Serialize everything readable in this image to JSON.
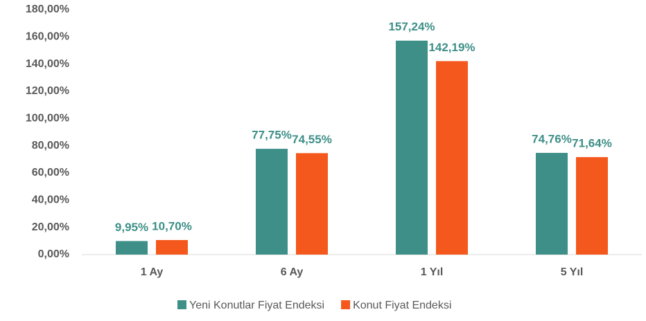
{
  "chart_data": {
    "type": "bar",
    "categories": [
      "1 Ay",
      "6 Ay",
      "1 Yıl",
      "5 Yıl"
    ],
    "series": [
      {
        "name": "Yeni Konutlar Fiyat Endeksi",
        "color": "#3d8f87",
        "values": [
          9.95,
          77.75,
          157.24,
          74.76
        ],
        "value_labels": [
          "9,95%",
          "77,75%",
          "157,24%",
          "74,76%"
        ]
      },
      {
        "name": "Konut Fiyat Endeksi",
        "color": "#f4581c",
        "values": [
          10.7,
          74.55,
          142.19,
          71.64
        ],
        "value_labels": [
          "10,70%",
          "74,55%",
          "142,19%",
          "71,64%"
        ]
      }
    ],
    "ylim": [
      0,
      180
    ],
    "yticks": [
      {
        "value": 0,
        "label": "0,00%"
      },
      {
        "value": 20,
        "label": "20,00%"
      },
      {
        "value": 40,
        "label": "40,00%"
      },
      {
        "value": 60,
        "label": "60,00%"
      },
      {
        "value": 80,
        "label": "80,00%"
      },
      {
        "value": 100,
        "label": "100,00%"
      },
      {
        "value": 120,
        "label": "120,00%"
      },
      {
        "value": 140,
        "label": "140,00%"
      },
      {
        "value": 160,
        "label": "160,00%"
      },
      {
        "value": 180,
        "label": "180,00%"
      }
    ],
    "grid": false,
    "legend": "bottom",
    "value_label_color": "#3d8f87"
  }
}
